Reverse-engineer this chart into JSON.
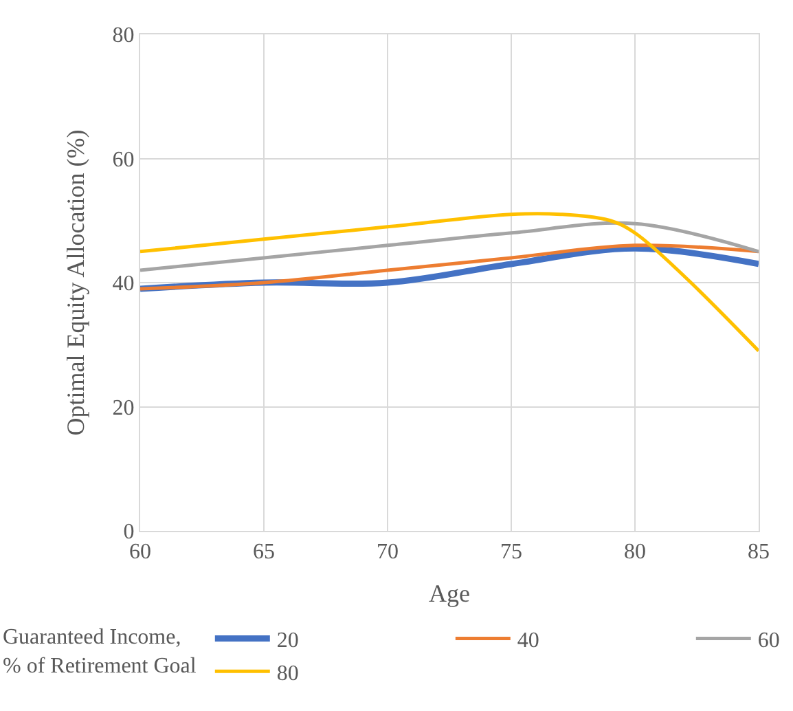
{
  "chart_data": {
    "type": "line",
    "xlabel": "Age",
    "ylabel": "Optimal Equity Allocation (%)",
    "legend_title": "Guaranteed Income,\n% of Retirement Goal",
    "x": [
      60,
      65,
      70,
      75,
      80,
      85
    ],
    "series": [
      {
        "name": "20",
        "color": "#4472c4",
        "values": [
          39,
          40,
          40,
          43,
          45.5,
          43
        ]
      },
      {
        "name": "40",
        "color": "#ed7d31",
        "values": [
          39,
          40,
          42,
          44,
          46,
          45
        ]
      },
      {
        "name": "60",
        "color": "#a5a5a5",
        "values": [
          42,
          44,
          46,
          48,
          49.5,
          45
        ]
      },
      {
        "name": "80",
        "color": "#ffc000",
        "x": [
          60,
          65,
          70,
          75,
          77,
          79,
          80,
          82,
          85
        ],
        "values": [
          45,
          47,
          49,
          51,
          51,
          50,
          48,
          41,
          29
        ]
      }
    ],
    "xlim": [
      60,
      85
    ],
    "xticks": [
      60,
      65,
      70,
      75,
      80,
      85
    ],
    "ylim": [
      0,
      80
    ],
    "yticks": [
      0,
      20,
      40,
      60,
      80
    ],
    "grid": true,
    "legend": "bottom",
    "marker": "none",
    "line_style": "solid"
  }
}
